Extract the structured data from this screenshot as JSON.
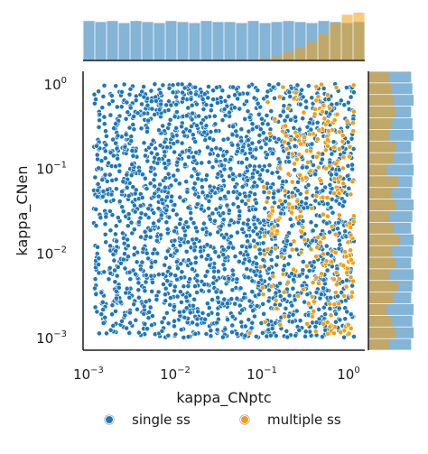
{
  "chart_data": {
    "type": "scatter",
    "title": "",
    "xlabel": "kappa_CNptc",
    "ylabel": "kappa_CNen",
    "xscale": "log",
    "yscale": "log",
    "xlim": [
      0.001,
      1
    ],
    "ylim": [
      0.001,
      1
    ],
    "x_ticks": [
      "10^-3",
      "10^-2",
      "10^-1",
      "10^0"
    ],
    "y_ticks": [
      "10^-3",
      "10^-2",
      "10^-1",
      "10^0"
    ],
    "grid": false,
    "legend_position": "bottom",
    "marginals": "histograms (top: kappa_CNptc, right: kappa_CNen)",
    "series": [
      {
        "name": "single ss",
        "color": "#1f77b4",
        "count_approx": 2300,
        "distribution": "log-uniform over full range of both axes"
      },
      {
        "name": "multiple ss",
        "color": "#f29e0e",
        "count_approx": 260,
        "distribution": "concentrated at kappa_CNptc between ~0.05 and 1, kappa_CNen spread over full range"
      }
    ],
    "top_histogram": {
      "bins": 24,
      "single_ss": [
        38,
        37,
        38,
        36,
        38,
        37,
        36,
        38,
        37,
        36,
        38,
        37,
        37,
        36,
        38,
        36,
        37,
        38,
        37,
        36,
        38,
        37,
        36,
        37
      ],
      "multiple_ss": [
        0,
        0,
        0,
        0,
        0,
        0,
        0,
        0,
        0,
        0,
        0,
        0,
        0,
        0,
        1,
        2,
        4,
        8,
        12,
        18,
        26,
        36,
        44,
        46
      ]
    },
    "right_histogram": {
      "bins": 24,
      "single_ss": [
        36,
        38,
        37,
        38,
        36,
        37,
        38,
        36,
        37,
        38,
        36,
        37,
        38,
        36,
        37,
        38,
        37,
        36,
        38,
        37,
        36,
        38,
        37,
        36
      ],
      "multiple_ss": [
        9,
        12,
        10,
        8,
        11,
        13,
        9,
        12,
        10,
        14,
        11,
        9,
        12,
        10,
        13,
        8,
        11,
        12,
        9,
        10,
        12,
        11,
        10,
        9
      ]
    }
  },
  "legend": {
    "items": [
      {
        "label": "single ss",
        "color": "#1f77b4"
      },
      {
        "label": "multiple ss",
        "color": "#f29e0e"
      }
    ]
  }
}
